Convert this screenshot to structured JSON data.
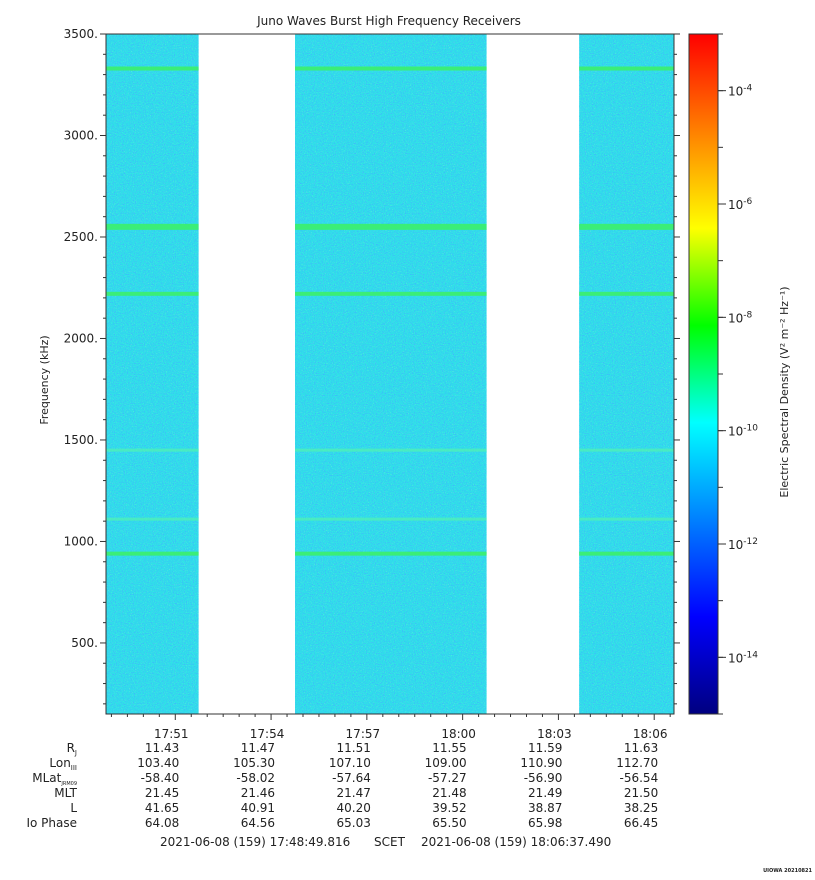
{
  "chart_data": {
    "type": "heatmap",
    "title": "Juno Waves Burst High Frequency Receivers",
    "ylabel": "Frequency (kHz)",
    "ylim": [
      150,
      3500
    ],
    "yticks": [
      500,
      1000,
      1500,
      2000,
      2500,
      3000,
      3500
    ],
    "ytick_labels": [
      "500.",
      "1000.",
      "1500.",
      "2000.",
      "2500.",
      "3000.",
      "3500."
    ],
    "xlim_minutes": [
      1068.83,
      1086.62
    ],
    "xtick_minutes": [
      1071,
      1074,
      1077,
      1080,
      1083,
      1086
    ],
    "xtick_labels": [
      "17:51",
      "17:54",
      "17:57",
      "18:00",
      "18:03",
      "18:06"
    ],
    "data_intervals_minutes": [
      [
        1068.83,
        1071.73
      ],
      [
        1074.75,
        1080.75
      ],
      [
        1083.65,
        1086.62
      ]
    ],
    "emission_lines_khz": [
      940,
      1110,
      1450,
      2220,
      2550,
      3330
    ],
    "background_level": "1e-12",
    "colorbar": {
      "label": "Electric Spectral Density (V² m⁻² Hz⁻¹)",
      "scale": "log",
      "range": [
        1e-15,
        0.001
      ],
      "tick_exponents": [
        -14,
        -12,
        -10,
        -8,
        -6,
        -4
      ],
      "tick_base": "10",
      "colors": [
        "#000080",
        "#0000ff",
        "#0080ff",
        "#00ffff",
        "#00ff00",
        "#ffff00",
        "#ff8000",
        "#ff0000"
      ]
    },
    "ephemeris": {
      "rows": [
        {
          "label": "R",
          "sub": "J",
          "values": [
            "11.43",
            "11.47",
            "11.51",
            "11.55",
            "11.59",
            "11.63"
          ]
        },
        {
          "label": "Lon",
          "sub": "III",
          "values": [
            "103.40",
            "105.30",
            "107.10",
            "109.00",
            "110.90",
            "112.70"
          ]
        },
        {
          "label": "MLat",
          "sub": "JRM09",
          "values": [
            "-58.40",
            "-58.02",
            "-57.64",
            "-57.27",
            "-56.90",
            "-56.54"
          ]
        },
        {
          "label": "MLT",
          "sub": "",
          "values": [
            "21.45",
            "21.46",
            "21.47",
            "21.48",
            "21.49",
            "21.50"
          ]
        },
        {
          "label": "L",
          "sub": "",
          "values": [
            "41.65",
            "40.91",
            "40.20",
            "39.52",
            "38.87",
            "38.25"
          ]
        },
        {
          "label": "Io Phase",
          "sub": "",
          "values": [
            "64.08",
            "64.56",
            "65.03",
            "65.50",
            "65.98",
            "66.45"
          ]
        }
      ]
    },
    "time_range": {
      "start": "2021-06-08 (159) 17:48:49.816",
      "label": "SCET",
      "end": "2021-06-08 (159) 18:06:37.490"
    },
    "credit": "UIOWA 20210821"
  }
}
